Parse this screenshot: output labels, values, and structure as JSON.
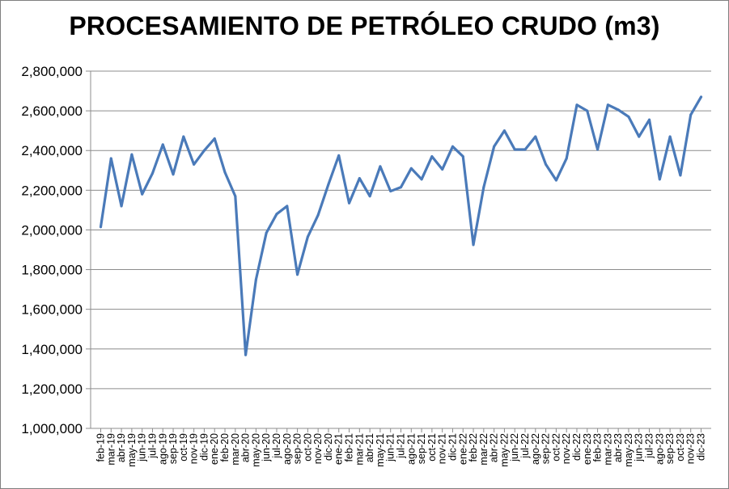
{
  "chart_data": {
    "type": "line",
    "title": "PROCESAMIENTO DE PETRÓLEO CRUDO (m3)",
    "xlabel": "",
    "ylabel": "",
    "ylim": [
      1000000,
      2800000
    ],
    "ytick_step": 200000,
    "grid": true,
    "legend": "none",
    "line_color": "#4a7ab9",
    "grid_color": "#8c8c8c",
    "yticks": [
      "1,000,000",
      "1,200,000",
      "1,400,000",
      "1,600,000",
      "1,800,000",
      "2,000,000",
      "2,200,000",
      "2,400,000",
      "2,600,000",
      "2,800,000"
    ],
    "categories": [
      "feb-19",
      "mar-19",
      "abr-19",
      "may-19",
      "jun-19",
      "jul-19",
      "ago-19",
      "sep-19",
      "oct-19",
      "nov-19",
      "dic-19",
      "ene-20",
      "feb-20",
      "mar-20",
      "abr-20",
      "may-20",
      "jun-20",
      "jul-20",
      "ago-20",
      "sep-20",
      "oct-20",
      "nov-20",
      "dic-20",
      "ene-21",
      "feb-21",
      "mar-21",
      "abr-21",
      "may-21",
      "jun-21",
      "jul-21",
      "ago-21",
      "sep-21",
      "oct-21",
      "nov-21",
      "dic-21",
      "ene-22",
      "feb-22",
      "mar-22",
      "abr-22",
      "may-22",
      "jun-22",
      "jul-22",
      "ago-22",
      "sep-22",
      "oct-22",
      "nov-22",
      "dic-22",
      "ene-23",
      "feb-23",
      "mar-23",
      "abr-23",
      "may-23",
      "jun-23",
      "jul-23",
      "ago-23",
      "sep-23",
      "oct-23",
      "nov-23",
      "dic-23"
    ],
    "values": [
      2015000,
      2360000,
      2120000,
      2380000,
      2180000,
      2285000,
      2430000,
      2280000,
      2470000,
      2330000,
      2400000,
      2460000,
      2290000,
      2170000,
      1370000,
      1750000,
      1985000,
      2080000,
      2120000,
      1775000,
      1965000,
      2075000,
      2230000,
      2375000,
      2135000,
      2260000,
      2170000,
      2320000,
      2195000,
      2215000,
      2310000,
      2255000,
      2370000,
      2305000,
      2420000,
      2370000,
      1925000,
      2215000,
      2420000,
      2500000,
      2405000,
      2405000,
      2470000,
      2330000,
      2250000,
      2360000,
      2630000,
      2600000,
      2405000,
      2630000,
      2605000,
      2570000,
      2470000,
      2555000,
      2255000,
      2470000,
      2275000,
      2580000,
      2670000
    ]
  }
}
